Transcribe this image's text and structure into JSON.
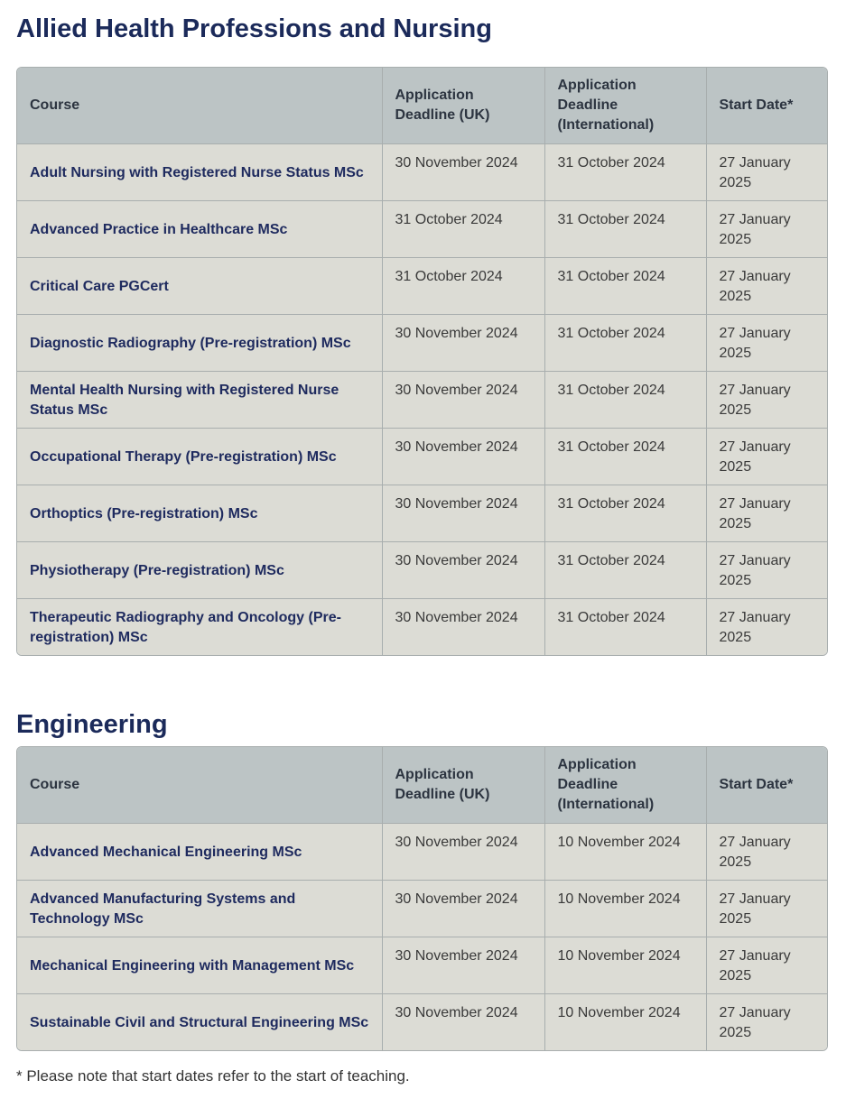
{
  "sections": [
    {
      "title": "Allied Health Professions and Nursing",
      "headers": [
        "Course",
        "Application Deadline (UK)",
        "Application Deadline (International)",
        "Start Date*"
      ],
      "rows": [
        [
          "Adult Nursing with Registered Nurse Status MSc",
          "30 November 2024",
          "31 October 2024",
          "27 January 2025"
        ],
        [
          "Advanced Practice in Healthcare MSc",
          "31 October 2024",
          "31 October 2024",
          "27 January 2025"
        ],
        [
          "Critical Care PGCert",
          "31 October 2024",
          "31 October 2024",
          "27 January 2025"
        ],
        [
          "Diagnostic Radiography (Pre-registration) MSc",
          "30 November 2024",
          "31 October 2024",
          "27 January 2025"
        ],
        [
          "Mental Health Nursing with Registered Nurse Status MSc",
          "30 November 2024",
          "31 October 2024",
          "27 January 2025"
        ],
        [
          "Occupational Therapy (Pre-registration) MSc",
          "30 November 2024",
          "31 October 2024",
          "27 January 2025"
        ],
        [
          "Orthoptics (Pre-registration) MSc",
          "30 November 2024",
          "31 October 2024",
          "27 January 2025"
        ],
        [
          "Physiotherapy (Pre-registration) MSc",
          "30 November 2024",
          "31 October 2024",
          "27 January 2025"
        ],
        [
          "Therapeutic Radiography and Oncology (Pre-registration) MSc",
          "30 November 2024",
          "31 October 2024",
          "27 January 2025"
        ]
      ]
    },
    {
      "title": "Engineering",
      "headers": [
        "Course",
        "Application Deadline (UK)",
        "Application Deadline (International)",
        "Start Date*"
      ],
      "rows": [
        [
          "Advanced Mechanical Engineering MSc",
          "30 November 2024",
          "10 November 2024",
          "27 January 2025"
        ],
        [
          "Advanced Manufacturing Systems and Technology MSc",
          "30 November 2024",
          "10 November 2024",
          "27 January 2025"
        ],
        [
          "Mechanical Engineering with Management MSc",
          "30 November 2024",
          "10 November 2024",
          "27 January 2025"
        ],
        [
          "Sustainable Civil and Structural Engineering MSc",
          "30 November 2024",
          "10 November 2024",
          "27 January 2025"
        ]
      ]
    }
  ],
  "footnote": "* Please note that start dates refer to the start of teaching."
}
